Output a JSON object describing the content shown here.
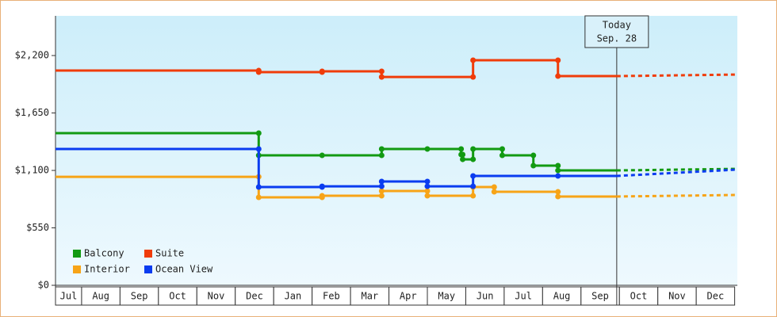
{
  "chart_data": {
    "type": "step-line",
    "categories": [
      "Jul",
      "Aug",
      "Sep",
      "Oct",
      "Nov",
      "Dec",
      "Jan",
      "Feb",
      "Mar",
      "Apr",
      "May",
      "Jun",
      "Jul",
      "Aug",
      "Sep",
      "Oct",
      "Nov",
      "Dec"
    ],
    "xlim": [
      0.32,
      18.07
    ],
    "ylim": [
      0,
      2580
    ],
    "yticks": [
      {
        "value": 0,
        "label": "$0"
      },
      {
        "value": 550,
        "label": "$550"
      },
      {
        "value": 1100,
        "label": "$1,100"
      },
      {
        "value": 1650,
        "label": "$1,650"
      },
      {
        "value": 2200,
        "label": "$2,200"
      }
    ],
    "today": {
      "x": 14.93,
      "label": "Today",
      "date": "Sep. 28"
    },
    "legend": "bottom-left",
    "series": [
      {
        "name": "Balcony",
        "color": "#129a12",
        "x": [
          0.32,
          5.61,
          7.26,
          8.81,
          10.0,
          10.88,
          10.92,
          11.19,
          11.95,
          12.76,
          13.4,
          14.93
        ],
        "values": [
          1457,
          1244,
          1244,
          1305,
          1305,
          1252,
          1206,
          1305,
          1244,
          1146,
          1100,
          1100
        ],
        "forecast": 1115
      },
      {
        "name": "Suite",
        "color": "#f03c0a",
        "x": [
          0.32,
          5.61,
          7.26,
          8.81,
          11.19,
          13.4,
          14.93
        ],
        "values": [
          2056,
          2041,
          2049,
          1995,
          2155,
          2003,
          2003
        ],
        "forecast": 2018
      },
      {
        "name": "Interior",
        "color": "#f7a417",
        "x": [
          0.32,
          5.61,
          7.26,
          8.81,
          10.0,
          11.19,
          11.74,
          13.4,
          14.93
        ],
        "values": [
          1039,
          842,
          857,
          903,
          857,
          941,
          895,
          850,
          850
        ],
        "forecast": 865
      },
      {
        "name": "Ocean View",
        "color": "#0a3cf0",
        "x": [
          0.32,
          5.61,
          7.26,
          8.81,
          10.0,
          11.19,
          13.4,
          14.93
        ],
        "values": [
          1305,
          941,
          948,
          994,
          948,
          1047,
          1047,
          1047
        ],
        "forecast": 1108
      }
    ]
  }
}
